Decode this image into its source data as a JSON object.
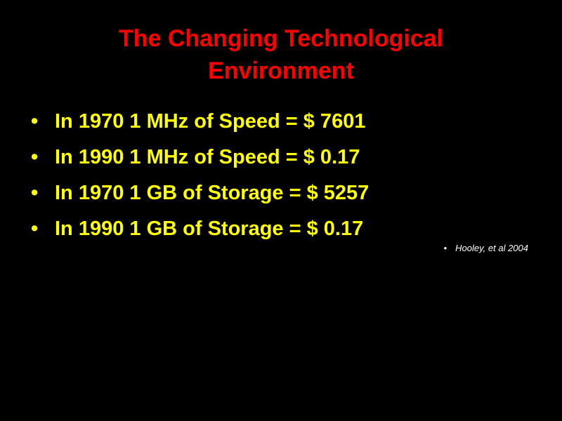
{
  "title": [
    "The Changing Technological",
    "Environment"
  ],
  "bullets": [
    "In 1970 1 MHz of Speed = $ 7601",
    "In 1990 1 MHz of Speed = $ 0.17",
    "In 1970 1 GB of Storage = $ 5257",
    "In 1990 1 GB of Storage = $ 0.17"
  ],
  "citation": "Hooley, et al 2004"
}
